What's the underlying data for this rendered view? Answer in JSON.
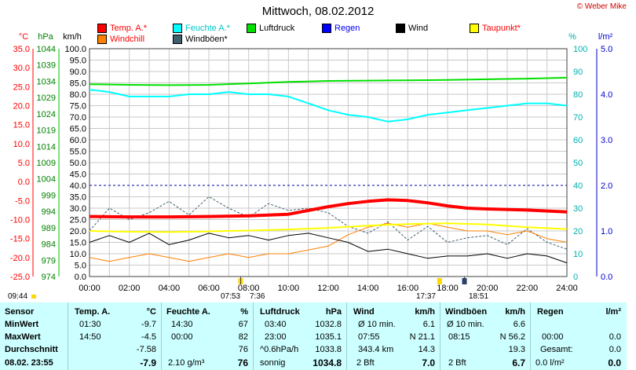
{
  "header": {
    "title": "Mittwoch, 08.02.2012",
    "copyright": "© Weber Mike"
  },
  "axes_labels": {
    "temp": "°C",
    "pressure": "hPa",
    "wind": "km/h",
    "humidity": "%",
    "rain": "l/m²"
  },
  "legend": [
    {
      "label": "Temp. A.*",
      "color": "#ff0000"
    },
    {
      "label": "Feuchte A.*",
      "color": "#00ffff"
    },
    {
      "label": "Luftdruck",
      "color": "#00e000"
    },
    {
      "label": "Regen",
      "color": "#0000ff"
    },
    {
      "label": "Wind",
      "color": "#000000"
    },
    {
      "label": "Taupunkt*",
      "color": "#ffff00"
    },
    {
      "label": "Windchill",
      "color": "#ff8000"
    },
    {
      "label": "Windböen*",
      "color": "#406070"
    }
  ],
  "sun": {
    "now_time": "09:44",
    "sunrise_label": "07:53",
    "sunrise_end_label": "7:36",
    "sunset_label": "17:37",
    "sunset_end_label": "18:51"
  },
  "chart_data": {
    "type": "line",
    "x": [
      "00:00",
      "02:00",
      "04:00",
      "06:00",
      "08:00",
      "10:00",
      "12:00",
      "14:00",
      "16:00",
      "18:00",
      "20:00",
      "22:00",
      "24:00"
    ],
    "left_axes": {
      "temp_ticks": [
        "35.0",
        "30.0",
        "25.0",
        "20.0",
        "15.0",
        "10.0",
        "5.0",
        "0.0",
        "-5.0",
        "-10.0",
        "-15.0",
        "-20.0",
        "-25.0"
      ],
      "pressure_ticks": [
        "1044",
        "1039",
        "1034",
        "1029",
        "1024",
        "1019",
        "1014",
        "1009",
        "1004",
        "999",
        "994",
        "989",
        "984",
        "979",
        "974"
      ],
      "wind_ticks": [
        "100.0",
        "95.0",
        "90.0",
        "85.0",
        "80.0",
        "75.0",
        "70.0",
        "65.0",
        "60.0",
        "55.0",
        "50.0",
        "45.0",
        "40.0",
        "35.0",
        "30.0",
        "25.0",
        "20.0",
        "15.0",
        "10.0",
        "5.0",
        "0.0"
      ]
    },
    "right_axes": {
      "humidity_ticks": [
        "100",
        "90",
        "80",
        "70",
        "60",
        "50",
        "40",
        "30",
        "20",
        "10",
        "0"
      ],
      "rain_ticks": [
        "5.0",
        "4.0",
        "3.0",
        "2.0",
        "1.0",
        "0.0"
      ]
    },
    "ranges": {
      "temp": [
        -25,
        35
      ],
      "pressure": [
        974,
        1044
      ],
      "wind": [
        0,
        100
      ],
      "humidity": [
        0,
        100
      ],
      "rain": [
        0,
        5
      ]
    },
    "series": [
      {
        "name": "Temp. A.*",
        "unit": "°C",
        "color": "#ff0000",
        "x": [
          0,
          2,
          4,
          6,
          8,
          10,
          11,
          12,
          13,
          14,
          15,
          16,
          17,
          18,
          19,
          20,
          22,
          24
        ],
        "y": [
          -9.2,
          -9.3,
          -9.3,
          -9.2,
          -9.0,
          -8.6,
          -7.6,
          -6.6,
          -5.8,
          -5.2,
          -4.8,
          -5.0,
          -5.6,
          -6.4,
          -7.0,
          -7.2,
          -7.5,
          -8.0
        ]
      },
      {
        "name": "Feuchte A.*",
        "unit": "%",
        "color": "#00ffff",
        "x": [
          0,
          1,
          2,
          3,
          4,
          5,
          6,
          7,
          8,
          9,
          10,
          11,
          12,
          13,
          14,
          15,
          16,
          17,
          18,
          19,
          20,
          21,
          22,
          23,
          24
        ],
        "y": [
          82,
          81,
          79,
          79,
          79,
          80,
          80,
          81,
          80,
          80,
          79,
          76,
          73,
          71,
          70,
          68,
          69,
          71,
          72,
          73,
          74,
          75,
          76,
          76,
          75
        ]
      },
      {
        "name": "Luftdruck",
        "unit": "hPa",
        "color": "#00e000",
        "x": [
          0,
          2,
          4,
          6,
          8,
          10,
          12,
          14,
          16,
          18,
          20,
          22,
          24
        ],
        "y": [
          1033.1,
          1032.9,
          1032.8,
          1032.9,
          1033.3,
          1033.8,
          1034.1,
          1034.2,
          1034.3,
          1034.4,
          1034.6,
          1034.8,
          1035.1
        ]
      },
      {
        "name": "Taupunkt*",
        "unit": "°C",
        "color": "#ffff00",
        "x": [
          0,
          2,
          4,
          6,
          8,
          10,
          12,
          14,
          16,
          18,
          20,
          22,
          24
        ],
        "y": [
          -13.0,
          -13.2,
          -13.3,
          -13.1,
          -12.9,
          -12.6,
          -12.2,
          -11.6,
          -11.2,
          -11.0,
          -11.3,
          -12.0,
          -12.5
        ]
      },
      {
        "name": "Windchill",
        "unit": "°C",
        "color": "#ff8000",
        "x": [
          0,
          1,
          2,
          3,
          4,
          5,
          6,
          7,
          8,
          9,
          10,
          11,
          12,
          13,
          14,
          15,
          16,
          17,
          18,
          19,
          20,
          21,
          22,
          23,
          24
        ],
        "y": [
          -20,
          -21,
          -20,
          -19,
          -20,
          -21,
          -20,
          -19,
          -20,
          -19,
          -19,
          -18,
          -17,
          -14,
          -12,
          -11,
          -12,
          -11,
          -12,
          -13,
          -13,
          -14,
          -13,
          -15,
          -16
        ]
      },
      {
        "name": "Wind",
        "unit": "km/h",
        "color": "#000000",
        "x": [
          0,
          1,
          2,
          3,
          4,
          5,
          6,
          7,
          8,
          9,
          10,
          11,
          12,
          13,
          14,
          15,
          16,
          17,
          18,
          19,
          20,
          21,
          22,
          23,
          24
        ],
        "y": [
          15,
          18,
          15,
          19,
          14,
          16,
          19,
          17,
          18,
          16,
          18,
          19,
          17,
          15,
          11,
          12,
          10,
          8,
          9,
          9,
          10,
          8,
          10,
          9,
          6
        ]
      },
      {
        "name": "Windböen*",
        "unit": "km/h",
        "color": "#406070",
        "x": [
          0,
          1,
          2,
          3,
          4,
          5,
          6,
          7,
          8,
          9,
          10,
          11,
          12,
          13,
          14,
          15,
          16,
          17,
          18,
          19,
          20,
          21,
          22,
          23,
          24
        ],
        "y": [
          20,
          30,
          25,
          28,
          33,
          27,
          35,
          30,
          26,
          32,
          29,
          30,
          28,
          22,
          19,
          24,
          16,
          22,
          15,
          17,
          18,
          14,
          21,
          15,
          12
        ]
      }
    ]
  },
  "table": {
    "col_sensor": {
      "header": "Sensor",
      "rows": [
        "MinWert",
        "MaxWert",
        "Durchschnitt"
      ],
      "footer": "08.02. 23:55"
    },
    "col_temp": {
      "header": "Temp. A.",
      "unit": "°C",
      "min_time": "01:30",
      "min_val": "-9.7",
      "max_time": "14:50",
      "max_val": "-4.5",
      "avg_val": "-7.58",
      "cur_val": "-7.9"
    },
    "col_hum": {
      "header": "Feuchte A.",
      "unit": "%",
      "min_time": "14:30",
      "min_val": "67",
      "max_time": "00:00",
      "max_val": "82",
      "avg_val": "76",
      "cur_label": "2.10 g/m³",
      "cur_val": "76"
    },
    "col_press": {
      "header": "Luftdruck",
      "unit": "hPa",
      "min_time": "03:40",
      "min_val": "1032.8",
      "max_time": "23:00",
      "max_val": "1035.1",
      "avg_label": "^0.6hPa/h",
      "avg_val": "1033.8",
      "cur_label": "sonnig",
      "cur_val": "1034.8"
    },
    "col_wind": {
      "header": "Wind",
      "unit": "km/h",
      "r1_label": "Ø 10 min.",
      "r1_val": "6.1",
      "r2_label": "07:55",
      "r2_mid": "N 21.1",
      "r3_label": "343.4 km",
      "r3_val": "14.3",
      "cur_label": "2 Bft",
      "cur_val": "7.0"
    },
    "col_gust": {
      "header": "Windböen",
      "unit": "km/h",
      "r1_label": "Ø 10 min.",
      "r1_val": "6.6",
      "r2_label": "08:15",
      "r2_mid": "N 56.2",
      "r3_val": "19.3",
      "cur_label": "2 Bft",
      "cur_val": "6.7"
    },
    "col_rain": {
      "header": "Regen",
      "unit": "l/m²",
      "r2_label": "00:00",
      "r2_val": "0.0",
      "r3_label": "Gesamt:",
      "r3_val": "0.0",
      "cur_label": "0.0 l/m²",
      "cur_val": "0.0"
    }
  }
}
